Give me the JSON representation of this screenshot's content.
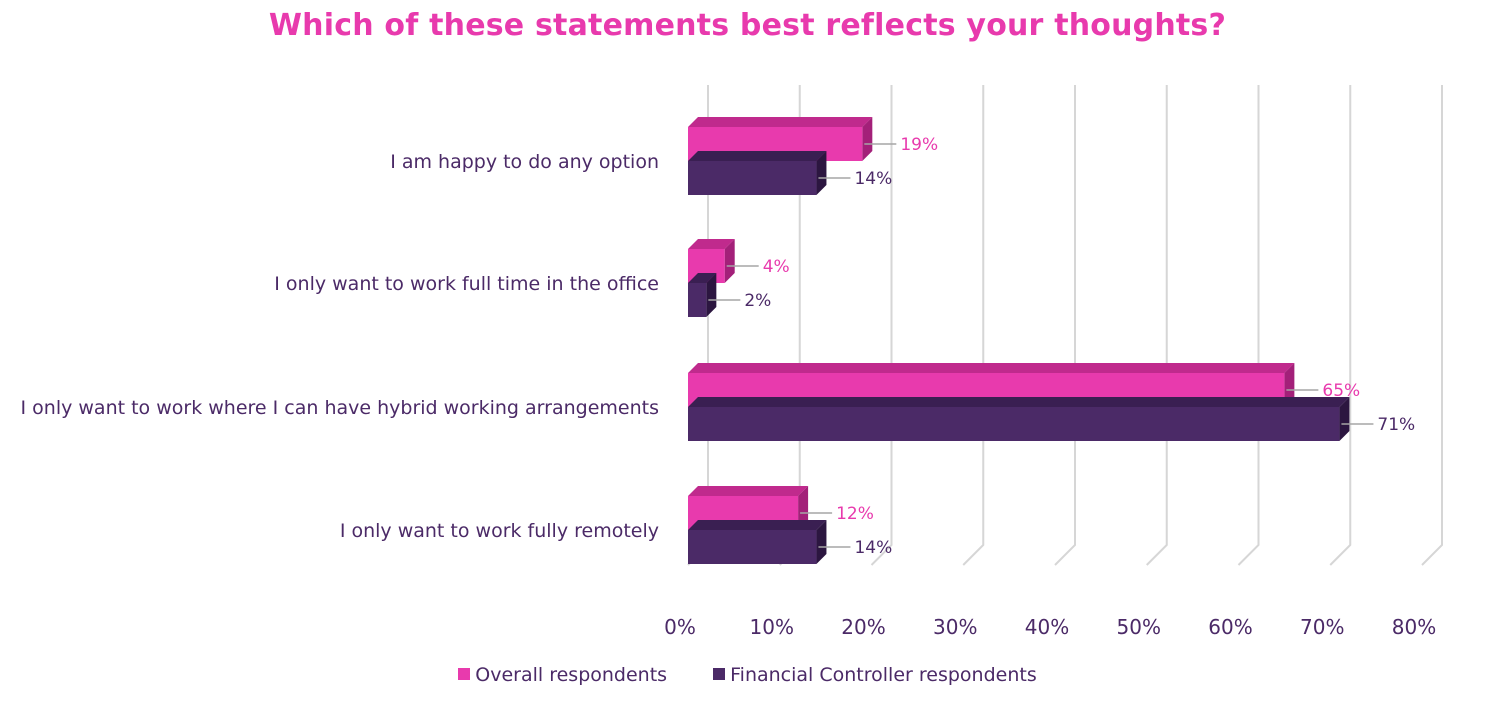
{
  "chart_data": {
    "type": "bar",
    "orientation": "horizontal",
    "title": "Which of these statements best reflects your thoughts?",
    "categories": [
      "I am happy to do any option",
      "I only want to work full time in the office",
      "I only want to work where I can have hybrid working arrangements",
      "I only want to work fully remotely"
    ],
    "series": [
      {
        "name": "Overall respondents",
        "values": [
          19,
          4,
          65,
          12
        ],
        "labels": [
          "19%",
          "4%",
          "65%",
          "12%"
        ]
      },
      {
        "name": "Financial Controller respondents",
        "values": [
          14,
          2,
          71,
          14
        ],
        "labels": [
          "14%",
          "2%",
          "71%",
          "14%"
        ]
      }
    ],
    "xlim": [
      0,
      80
    ],
    "xticks": [
      "0%",
      "10%",
      "20%",
      "30%",
      "40%",
      "50%",
      "60%",
      "70%",
      "80%"
    ],
    "grid": true,
    "legend_position": "bottom",
    "colors": {
      "overall": "#e83aad",
      "overall_top": "#c02a8d",
      "overall_side": "#a32079",
      "fc": "#4b2a67",
      "fc_top": "#3a1f52",
      "fc_side": "#2c1640",
      "overall_label": "#e83aad",
      "fc_label": "#4b2a67",
      "gridline": "#d6d6d6",
      "leader": "#a6a6a6"
    }
  }
}
